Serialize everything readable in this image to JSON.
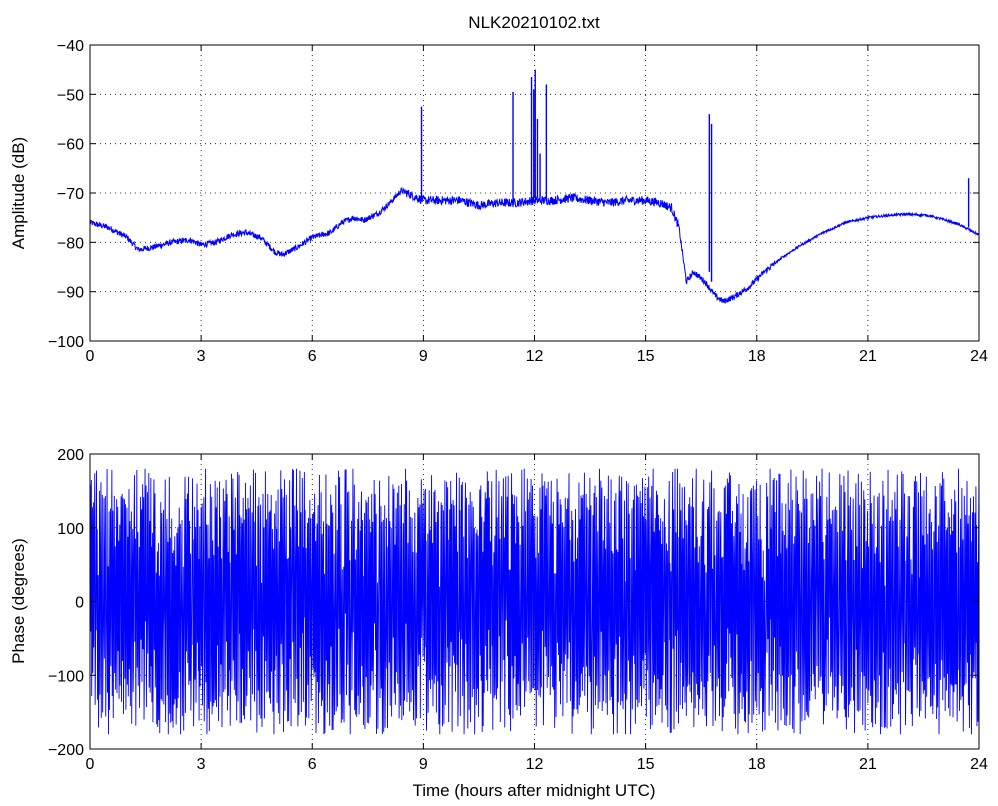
{
  "chart_data": [
    {
      "type": "line",
      "title": "NLK20210102.txt",
      "xlabel": "",
      "ylabel": "Amplitude (dB)",
      "xlim": [
        0,
        24
      ],
      "ylim": [
        -100,
        -40
      ],
      "xticks": [
        "0",
        "3",
        "6",
        "9",
        "12",
        "15",
        "18",
        "21",
        "24"
      ],
      "yticks": [
        "−40",
        "−50",
        "−60",
        "−70",
        "−80",
        "−90",
        "−100"
      ],
      "grid": true,
      "line_color": "#0000ff",
      "series": [
        {
          "x": [
            0,
            0.5,
            1.0,
            1.3,
            1.7,
            2.2,
            2.7,
            3.0,
            3.4,
            3.8,
            4.2,
            4.6,
            5.0,
            5.2,
            5.6,
            6.0,
            6.5,
            6.8,
            7.1,
            7.4,
            7.8,
            8.1,
            8.4,
            8.7,
            9.0,
            9.5,
            10.0,
            10.5,
            11.0,
            11.5,
            12.0,
            12.5,
            13.0,
            13.5,
            14.0,
            14.5,
            15.0,
            15.4,
            15.7,
            15.9,
            16.1,
            16.3,
            16.6,
            16.9,
            17.1,
            17.4,
            17.8,
            18.2,
            18.7,
            19.2,
            19.8,
            20.4,
            21.0,
            21.6,
            22.0,
            22.6,
            23.0,
            23.4,
            23.7,
            24.0
          ],
          "values": [
            -76,
            -77,
            -79,
            -81.5,
            -81,
            -80,
            -79.5,
            -80.5,
            -80,
            -78.5,
            -78,
            -79,
            -82,
            -82.5,
            -81,
            -79,
            -78,
            -76,
            -75,
            -75.5,
            -74,
            -72,
            -69.5,
            -70.5,
            -71.5,
            -71.5,
            -71.5,
            -72.5,
            -72,
            -72,
            -71.5,
            -71.5,
            -71,
            -71.5,
            -72,
            -71.5,
            -71.5,
            -72,
            -73,
            -77,
            -88,
            -86,
            -88,
            -91,
            -92,
            -91,
            -89,
            -86,
            -83,
            -80.5,
            -78,
            -76,
            -75,
            -74.5,
            -74.3,
            -74.5,
            -75.3,
            -76.2,
            -77.3,
            -78.5
          ]
        }
      ],
      "spikes": [
        {
          "x": 8.95,
          "peak": -52.5,
          "base": -71
        },
        {
          "x": 11.42,
          "peak": -49.5,
          "base": -72
        },
        {
          "x": 11.92,
          "peak": -46.5,
          "base": -72
        },
        {
          "x": 11.98,
          "peak": -49,
          "base": -71
        },
        {
          "x": 12.02,
          "peak": -45,
          "base": -71
        },
        {
          "x": 12.08,
          "peak": -55,
          "base": -71
        },
        {
          "x": 12.15,
          "peak": -62,
          "base": -71
        },
        {
          "x": 12.32,
          "peak": -48,
          "base": -71
        },
        {
          "x": 16.72,
          "peak": -54,
          "base": -86
        },
        {
          "x": 16.78,
          "peak": -56,
          "base": -88
        },
        {
          "x": 23.72,
          "peak": -67,
          "base": -77
        }
      ]
    },
    {
      "type": "line",
      "title": "",
      "xlabel": "Time (hours after midnight UTC)",
      "ylabel": "Phase (degrees)",
      "xlim": [
        0,
        24
      ],
      "ylim": [
        -200,
        200
      ],
      "xticks": [
        "0",
        "3",
        "6",
        "9",
        "12",
        "15",
        "18",
        "21",
        "24"
      ],
      "yticks": [
        "200",
        "100",
        "0",
        "−100",
        "−200"
      ],
      "grid": true,
      "line_color": "#0000ff",
      "series": [
        {
          "description_range": [
            -180,
            180
          ],
          "wrap_min": -180,
          "wrap_max": 180
        }
      ]
    }
  ]
}
